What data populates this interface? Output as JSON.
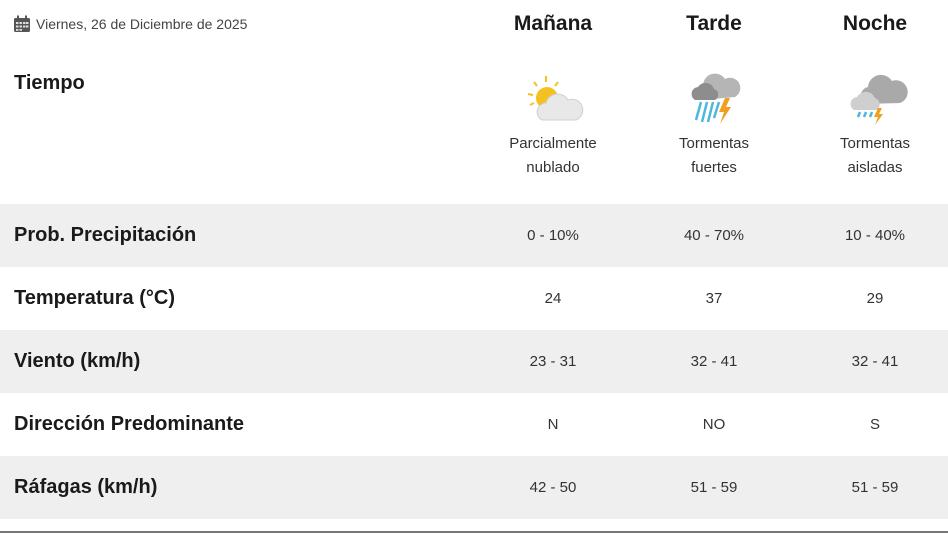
{
  "date": "Viernes, 26 de Diciembre de 2025",
  "columns": [
    "Mañana",
    "Tarde",
    "Noche"
  ],
  "weather_label": "Tiempo",
  "conditions": [
    {
      "line1": "Parcialmente",
      "line2": "nublado",
      "icon": "partly-cloudy-icon"
    },
    {
      "line1": "Tormentas",
      "line2": "fuertes",
      "icon": "heavy-storm-icon"
    },
    {
      "line1": "Tormentas",
      "line2": "aisladas",
      "icon": "isolated-storm-icon"
    }
  ],
  "rows": [
    {
      "label": "Prob. Precipitación",
      "values": [
        "0 - 10%",
        "40 - 70%",
        "10 - 40%"
      ]
    },
    {
      "label": "Temperatura (°C)",
      "values": [
        "24",
        "37",
        "29"
      ]
    },
    {
      "label": "Viento (km/h)",
      "values": [
        "23 - 31",
        "32 - 41",
        "32 - 41"
      ]
    },
    {
      "label": "Dirección Predominante",
      "values": [
        "N",
        "NO",
        "S"
      ]
    },
    {
      "label": "Ráfagas (km/h)",
      "values": [
        "42 - 50",
        "51 - 59",
        "51 - 59"
      ]
    }
  ],
  "colors": {
    "stripe": "#efefef",
    "sun": "#f5c022",
    "rain": "#4fb6de",
    "bolt": "#f0a020",
    "cloud": "#b5b5b5"
  }
}
